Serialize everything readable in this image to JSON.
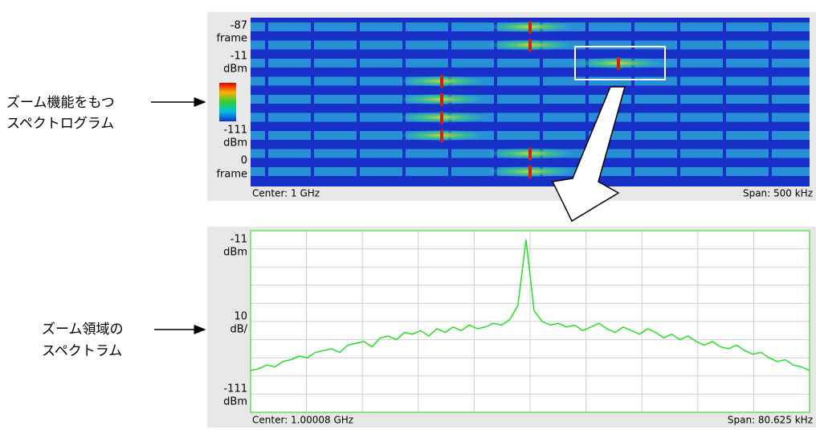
{
  "annotations": {
    "spectrogram": [
      "ズーム機能をもつ",
      "スペクトログラム"
    ],
    "spectrum": [
      "ズーム領域の",
      "スペクトラム"
    ]
  },
  "spectrogram": {
    "frame_top": -87,
    "frame_top_unit": "frame",
    "ref_top": -11,
    "ref_top_unit": "dBm",
    "ref_bottom": -111,
    "ref_bottom_unit": "dBm",
    "frame_bottom": 0,
    "frame_bottom_unit": "frame",
    "center": "Center: 1 GHz",
    "span": "Span: 500 kHz"
  },
  "spectrum": {
    "ref_top": -11,
    "ref_top_unit": "dBm",
    "scale": 10,
    "scale_unit": "dB/",
    "ref_bottom": -111,
    "ref_bottom_unit": "dBm",
    "center": "Center: 1.00008 GHz",
    "span": "Span: 80.625 kHz",
    "trace": [
      -88,
      -87,
      -85,
      -86,
      -83,
      -82,
      -80,
      -81,
      -78,
      -77,
      -76,
      -78,
      -74,
      -73,
      -72,
      -75,
      -70,
      -69,
      -71,
      -67,
      -68,
      -66,
      -69,
      -65,
      -67,
      -64,
      -66,
      -63,
      -65,
      -64,
      -62,
      -63,
      -60,
      -52,
      -16,
      -55,
      -61,
      -63,
      -62,
      -64,
      -63,
      -66,
      -64,
      -62,
      -65,
      -67,
      -64,
      -66,
      -68,
      -65,
      -67,
      -70,
      -68,
      -71,
      -69,
      -72,
      -74,
      -72,
      -75,
      -76,
      -74,
      -77,
      -79,
      -78,
      -81,
      -83,
      -82,
      -85,
      -86,
      -88
    ]
  }
}
